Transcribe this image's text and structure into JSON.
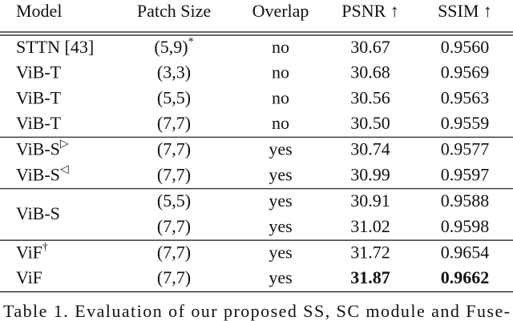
{
  "table": {
    "columns": [
      "Model",
      "Patch Size",
      "Overlap",
      "PSNR ↑",
      "SSIM ↑"
    ],
    "groups": [
      {
        "rows": [
          [
            {
              "text": "STTN [43]"
            },
            {
              "text": "(5,9)",
              "sup": "*"
            },
            {
              "text": "no"
            },
            {
              "text": "30.67"
            },
            {
              "text": "0.9560"
            }
          ],
          [
            {
              "text": "ViB-T"
            },
            {
              "text": "(3,3)"
            },
            {
              "text": "no"
            },
            {
              "text": "30.68"
            },
            {
              "text": "0.9569"
            }
          ],
          [
            {
              "text": "ViB-T"
            },
            {
              "text": "(5,5)"
            },
            {
              "text": "no"
            },
            {
              "text": "30.56"
            },
            {
              "text": "0.9563"
            }
          ],
          [
            {
              "text": "ViB-T"
            },
            {
              "text": "(7,7)"
            },
            {
              "text": "no"
            },
            {
              "text": "30.50"
            },
            {
              "text": "0.9559"
            }
          ]
        ]
      },
      {
        "rows": [
          [
            {
              "text": "ViB-S",
              "sup": "▷"
            },
            {
              "text": "(7,7)"
            },
            {
              "text": "yes"
            },
            {
              "text": "30.74"
            },
            {
              "text": "0.9577"
            }
          ],
          [
            {
              "text": "ViB-S",
              "sup": "◁"
            },
            {
              "text": "(7,7)"
            },
            {
              "text": "yes"
            },
            {
              "text": "30.99"
            },
            {
              "text": "0.9597"
            }
          ]
        ]
      },
      {
        "model": "ViB-S",
        "rows": [
          [
            {
              "text": "(5,5)"
            },
            {
              "text": "yes"
            },
            {
              "text": "30.91"
            },
            {
              "text": "0.9588"
            }
          ],
          [
            {
              "text": "(7,7)"
            },
            {
              "text": "yes"
            },
            {
              "text": "31.02"
            },
            {
              "text": "0.9598"
            }
          ]
        ]
      },
      {
        "rows": [
          [
            {
              "text": "ViF",
              "sup": "†"
            },
            {
              "text": "(7,7)"
            },
            {
              "text": "yes"
            },
            {
              "text": "31.72"
            },
            {
              "text": "0.9654"
            }
          ],
          [
            {
              "text": "ViF"
            },
            {
              "text": "(7,7)"
            },
            {
              "text": "yes"
            },
            {
              "text": "31.87",
              "bold": true
            },
            {
              "text": "0.9662",
              "bold": true
            }
          ]
        ]
      }
    ],
    "caption": "Table 1. Evaluation of our proposed SS, SC module and Fuse-"
  }
}
